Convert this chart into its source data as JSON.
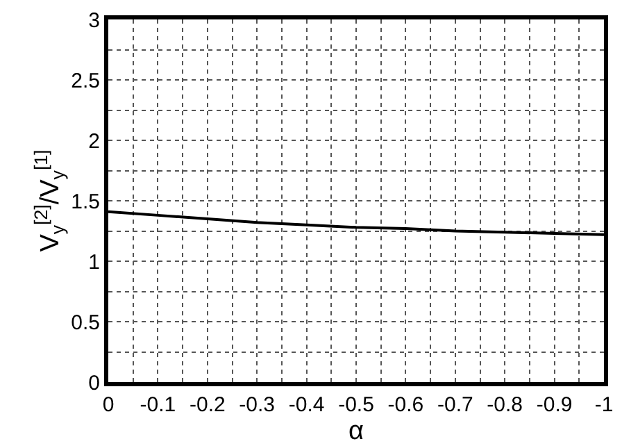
{
  "chart_data": {
    "type": "line",
    "xlabel": "α",
    "ylabel": "V$_{y}$$^{[2]}$/V$_{y}$$^{[1]}$",
    "x": [
      0,
      -0.1,
      -0.2,
      -0.3,
      -0.4,
      -0.5,
      -0.6,
      -0.7,
      -0.8,
      -0.9,
      -1
    ],
    "series": [
      {
        "color": "#000000",
        "values": [
          1.41,
          1.38,
          1.35,
          1.32,
          1.3,
          1.28,
          1.27,
          1.25,
          1.24,
          1.23,
          1.22
        ]
      }
    ],
    "xlim": [
      0,
      -1
    ],
    "xticks": [
      0,
      {
        "value": -0.05,
        "label": null
      },
      -0.1,
      {
        "value": -0.15,
        "label": null
      },
      -0.2,
      {
        "value": -0.25,
        "label": null
      },
      -0.3,
      {
        "value": -0.35,
        "label": null
      },
      -0.4,
      {
        "value": -0.45,
        "label": null
      },
      -0.5,
      {
        "value": -0.55,
        "label": null
      },
      -0.6,
      {
        "value": -0.65,
        "label": null
      },
      -0.7,
      {
        "value": -0.75,
        "label": null
      },
      -0.8,
      {
        "value": -0.85,
        "label": null
      },
      -0.9,
      {
        "value": -0.95,
        "label": null
      },
      -1
    ],
    "ylim": [
      0,
      3
    ],
    "yticks": [
      0,
      {
        "value": 0.25,
        "label": null
      },
      0.5,
      {
        "value": 0.75,
        "label": null
      },
      1,
      {
        "value": 1.25,
        "label": null
      },
      1.5,
      {
        "value": 1.75,
        "label": null
      },
      2,
      {
        "value": 2.25,
        "label": null
      },
      2.5,
      {
        "value": 2.75,
        "label": null
      },
      3
    ],
    "grid": true,
    "marker": "none",
    "line_style": "solid"
  }
}
